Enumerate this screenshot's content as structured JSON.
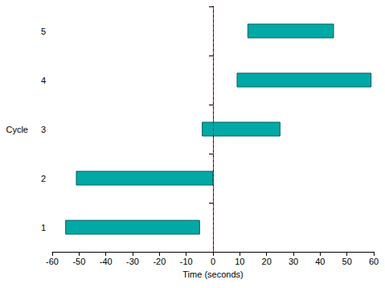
{
  "chart_data": {
    "type": "bar",
    "orientation": "horizontal",
    "x_label": "Time (seconds)",
    "y_label": "Cycle",
    "categories": [
      "1",
      "2",
      "3",
      "4",
      "5"
    ],
    "start": [
      -55,
      -51,
      -4,
      9,
      13
    ],
    "end": [
      -5,
      0,
      25,
      59,
      45
    ],
    "color": "#00a9a6",
    "xlim": [
      -60,
      60
    ],
    "xticks": [
      -60,
      -50,
      -40,
      -30,
      -20,
      -10,
      0,
      10,
      20,
      30,
      40,
      50,
      60
    ],
    "grid": false,
    "reference_lines": [
      {
        "x": 0,
        "color": "#ff0000",
        "line_style": "dashed"
      }
    ]
  }
}
